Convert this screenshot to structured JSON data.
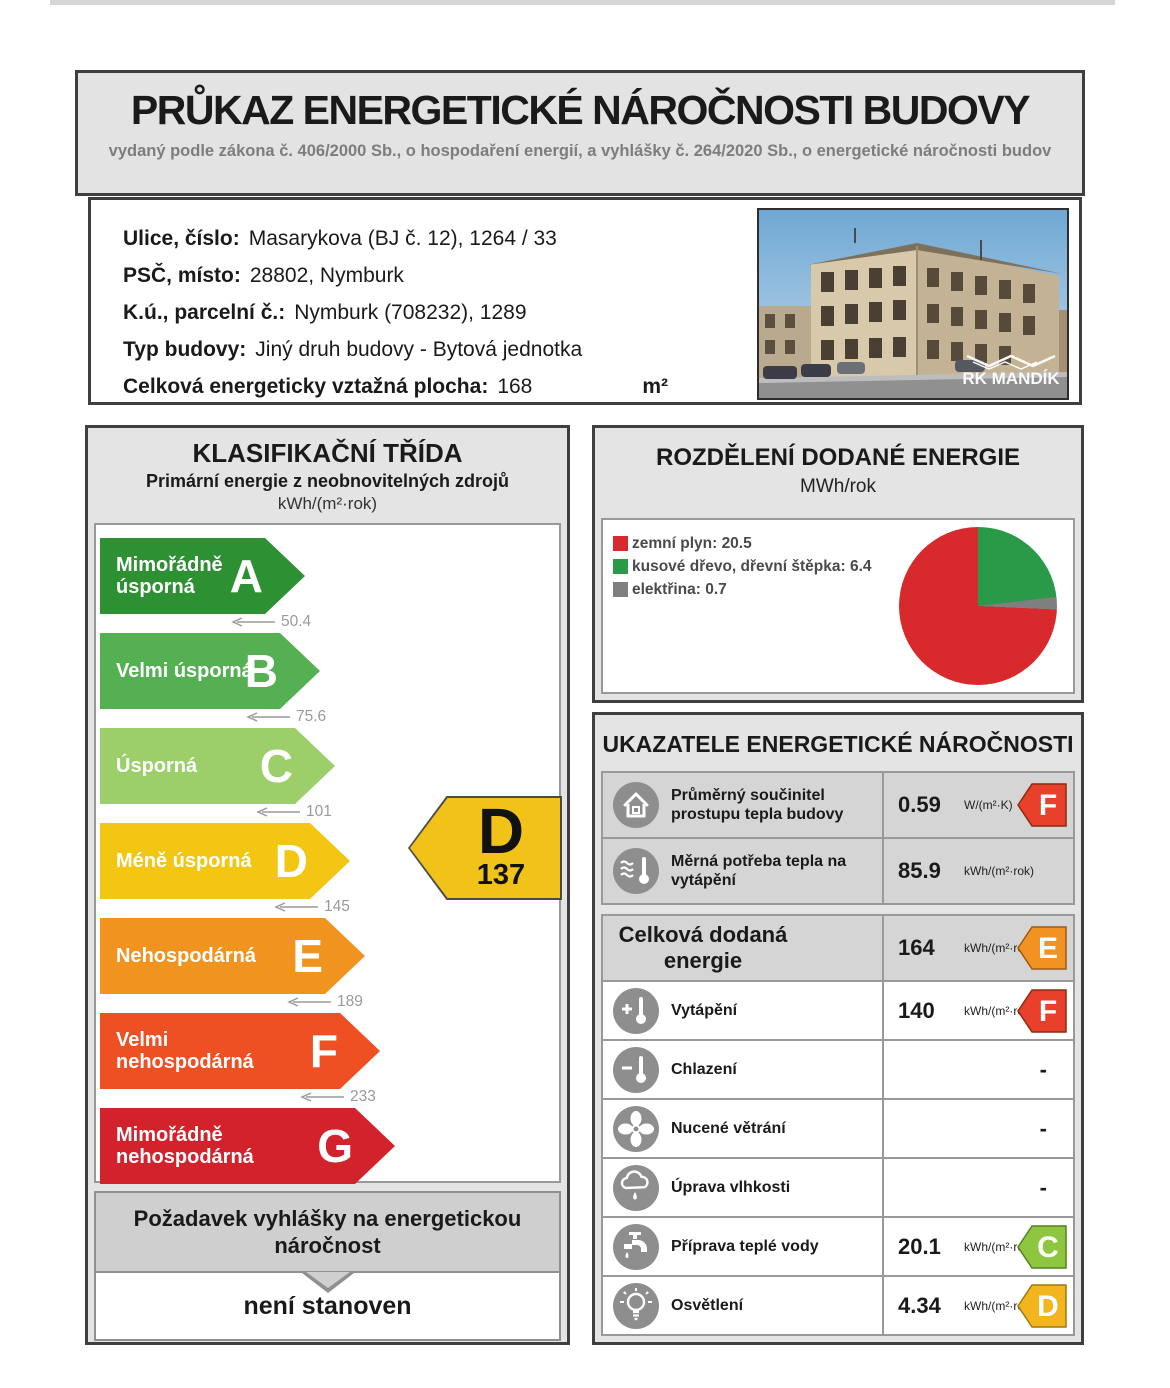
{
  "page": {
    "title": "PRŮKAZ ENERGETICKÉ NÁROČNOSTI BUDOVY",
    "subtitle": "vydaný podle zákona č. 406/2000 Sb., o hospodaření energií, a vyhlášky č. 264/2020 Sb., o energetické náročnosti budov"
  },
  "building_info": {
    "fields": [
      {
        "label": "Ulice, číslo:",
        "value": "Masarykova (BJ č. 12), 1264 / 33"
      },
      {
        "label": "PSČ, místo:",
        "value": "28802, Nymburk"
      },
      {
        "label": "K.ú., parcelní č.:",
        "value": "Nymburk (708232), 1289"
      },
      {
        "label": "Typ budovy:",
        "value": "Jiný druh budovy - Bytová jednotka"
      },
      {
        "label": "Celková energeticky vztažná plocha:",
        "value": "168",
        "unit": "m²"
      }
    ],
    "photo_watermark": "RK MANDÍK"
  },
  "classification": {
    "title": "KLASIFIKAČNÍ TŘÍDA",
    "subtitle": "Primární energie z neobnovitelných zdrojů",
    "unit": "kWh/(m²·rok)",
    "classes": [
      {
        "letter": "A",
        "label": "Mimořádně úsporná",
        "color": "#2d9134",
        "threshold": "50.4"
      },
      {
        "letter": "B",
        "label": "Velmi úsporná",
        "color": "#55b054",
        "threshold": "75.6"
      },
      {
        "letter": "C",
        "label": "Úsporná",
        "color": "#9ccf69",
        "threshold": "101"
      },
      {
        "letter": "D",
        "label": "Méně úsporná",
        "color": "#f3c614",
        "threshold": "145"
      },
      {
        "letter": "E",
        "label": "Nehospodárná",
        "color": "#f1941f",
        "threshold": "189"
      },
      {
        "letter": "F",
        "label": "Velmi nehospodárná",
        "color": "#ee4f23",
        "threshold": "233"
      },
      {
        "letter": "G",
        "label": "Mimořádně nehospodárná",
        "color": "#d2232c"
      }
    ],
    "marker": {
      "letter": "D",
      "value": "137",
      "color": "#f1c318"
    },
    "requirement": {
      "label": "Požadavek vyhlášky na energetickou náročnost",
      "value": "není stanoven"
    }
  },
  "energy_distribution": {
    "title": "ROZDĚLENÍ DODANÉ ENERGIE",
    "unit": "MWh/rok"
  },
  "indicators": {
    "title": "UKAZATELE ENERGETICKÉ NÁROČNOSTI",
    "top_rows": [
      {
        "icon": "house",
        "label": "Průměrný součinitel prostupu tepla budovy",
        "value": "0.59",
        "unit": "W/(m²·K)",
        "badge": {
          "letter": "F",
          "color": "#e8402a",
          "border": "#8d2a10"
        }
      },
      {
        "icon": "heat-waves-thermometer",
        "label": "Měrná potřeba tepla na vytápění",
        "value": "85.9",
        "unit": "kWh/(m²·rok)"
      }
    ],
    "total_row": {
      "label": "Celková dodaná energie",
      "value": "164",
      "unit": "kWh/(m²·rok)",
      "badge": {
        "letter": "E",
        "color": "#f29222",
        "border": "#9c5a0f"
      }
    },
    "rows": [
      {
        "icon": "plus-thermometer",
        "label": "Vytápění",
        "value": "140",
        "unit": "kWh/(m²·rok)",
        "badge": {
          "letter": "F",
          "color": "#e8402a",
          "border": "#8d2a10"
        }
      },
      {
        "icon": "minus-thermometer",
        "label": "Chlazení",
        "dash": "-"
      },
      {
        "icon": "fan",
        "label": "Nucené větrání",
        "dash": "-"
      },
      {
        "icon": "cloud-drop",
        "label": "Úprava vlhkosti",
        "dash": "-"
      },
      {
        "icon": "faucet",
        "label": "Příprava teplé vody",
        "value": "20.1",
        "unit": "kWh/(m²·rok)",
        "badge": {
          "letter": "C",
          "color": "#8fc640",
          "border": "#55821c"
        }
      },
      {
        "icon": "bulb",
        "label": "Osvětlení",
        "value": "4.34",
        "unit": "kWh/(m²·rok)",
        "badge": {
          "letter": "D",
          "color": "#f2b51e",
          "border": "#9c7a10"
        }
      }
    ]
  },
  "chart_data": [
    {
      "type": "pie",
      "title": "ROZDĚLENÍ DODANÉ ENERGIE",
      "unit": "MWh/rok",
      "series": [
        {
          "label": "zemní plyn",
          "value": 20.5,
          "color": "#d8292c"
        },
        {
          "label": "kusové dřevo, dřevní štěpka",
          "value": 6.4,
          "color": "#2b9a48"
        },
        {
          "label": "elektřina",
          "value": 0.7,
          "color": "#7f7f7f"
        }
      ],
      "draw_order": [
        1,
        2,
        0
      ],
      "start_angle_deg": 0,
      "legend_position": "left"
    },
    {
      "type": "scale",
      "title": "KLASIFIKAČNÍ TŘÍDA",
      "subtitle": "Primární energie z neobnovitelných zdrojů",
      "unit": "kWh/(m²·rok)",
      "classes": [
        "A",
        "B",
        "C",
        "D",
        "E",
        "F",
        "G"
      ],
      "upper_bounds": [
        50.4,
        75.6,
        101,
        145,
        189,
        233,
        null
      ],
      "current_class": "D",
      "current_value": 137
    }
  ]
}
